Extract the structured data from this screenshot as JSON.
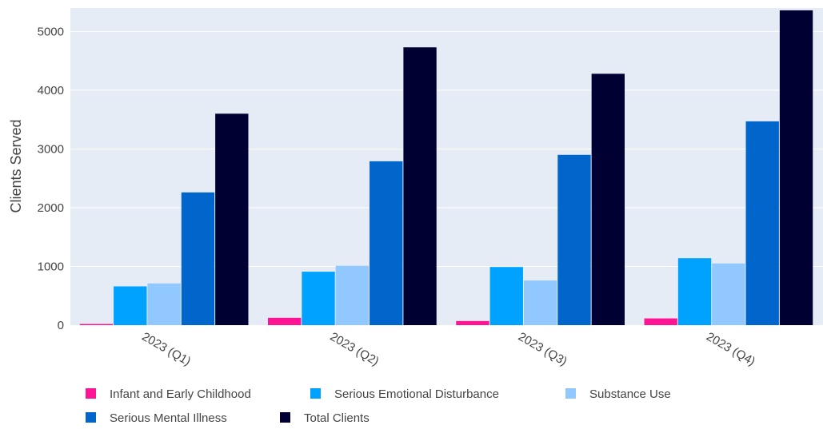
{
  "chart_data": {
    "type": "bar",
    "title": "",
    "xlabel": "",
    "ylabel": "Clients Served",
    "ylim": [
      0,
      5400
    ],
    "yticks": [
      0,
      1000,
      2000,
      3000,
      4000,
      5000
    ],
    "grid": true,
    "legend_position": "bottom-left",
    "categories": [
      "2023 (Q1)",
      "2023 (Q2)",
      "2023 (Q3)",
      "2023 (Q4)"
    ],
    "series": [
      {
        "name": "Infant and Early Childhood",
        "color": "#ff1493",
        "values": [
          20,
          125,
          70,
          115
        ]
      },
      {
        "name": "Serious Emotional Disturbance",
        "color": "#00a2ff",
        "values": [
          660,
          910,
          990,
          1140
        ]
      },
      {
        "name": "Substance Use",
        "color": "#91c8ff",
        "values": [
          710,
          1010,
          760,
          1050
        ]
      },
      {
        "name": "Serious Mental Illness",
        "color": "#0066cc",
        "values": [
          2260,
          2790,
          2900,
          3470
        ]
      },
      {
        "name": "Total Clients",
        "color": "#000033",
        "values": [
          3600,
          4730,
          4280,
          5360
        ]
      }
    ]
  }
}
